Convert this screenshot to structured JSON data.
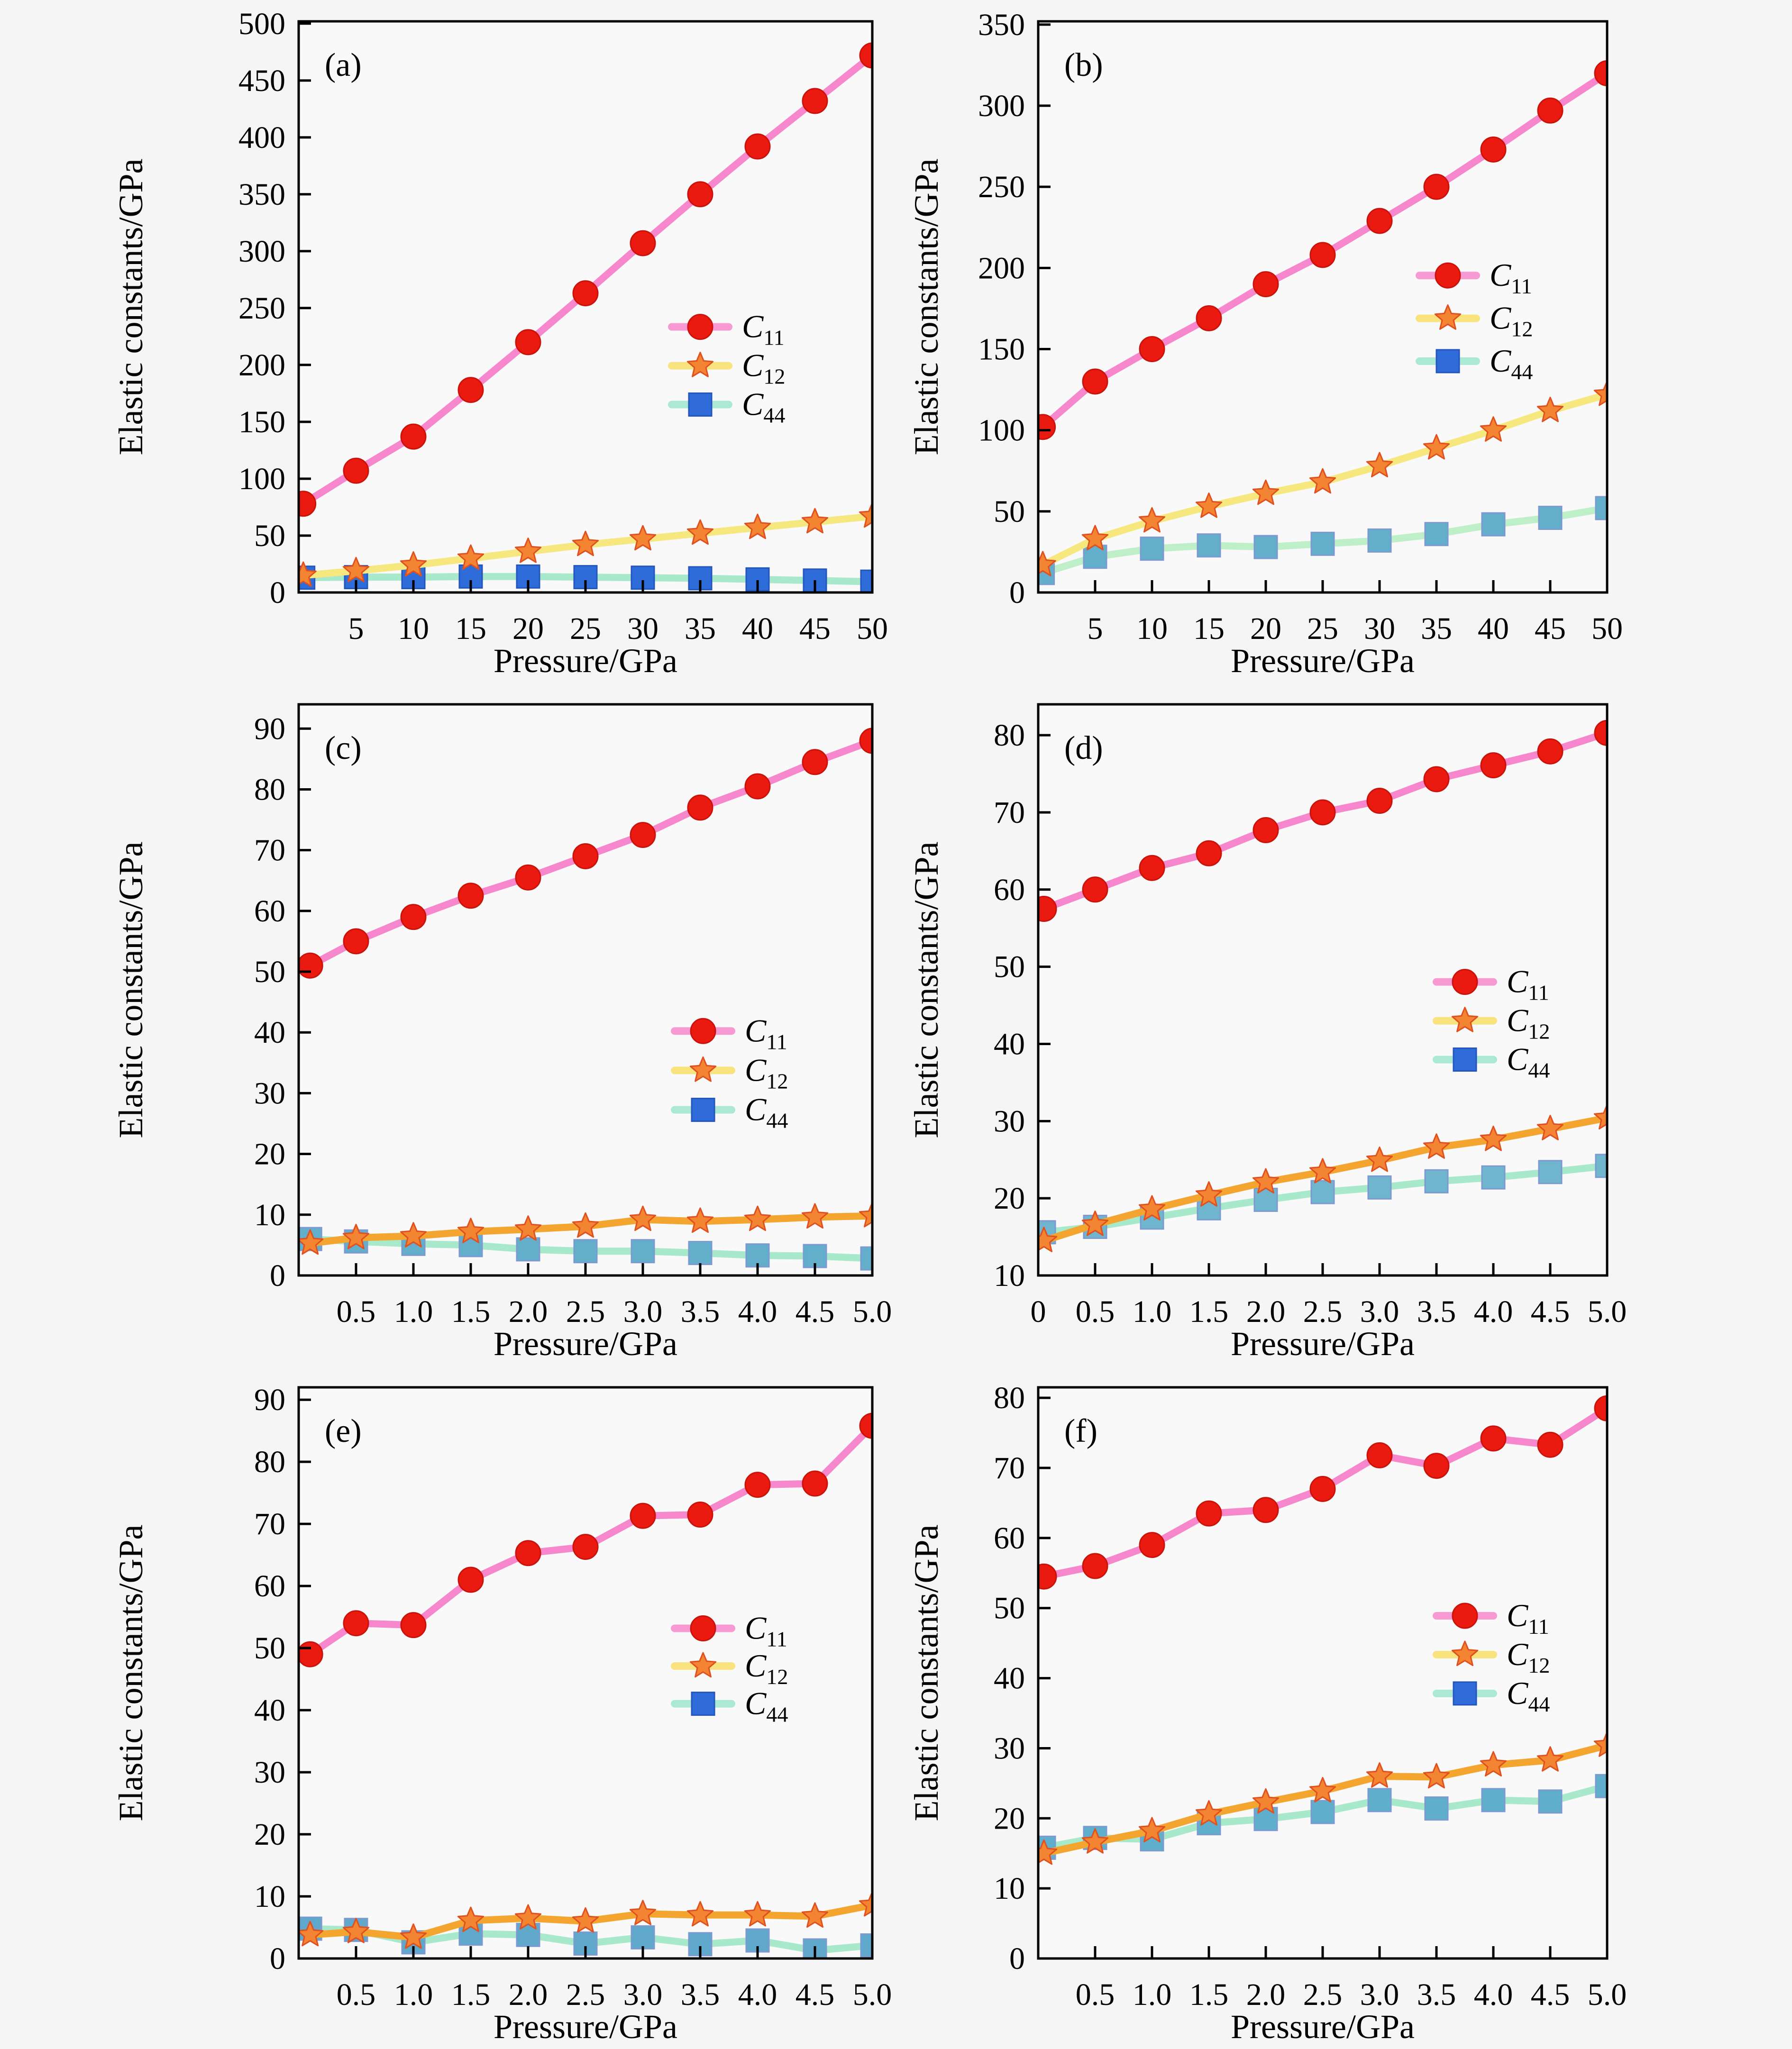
{
  "figure": {
    "background": "#F6F5F6",
    "plot_background": "#FAF9FA",
    "axis_color": "#000000",
    "text_color": "#000000",
    "xlabel": "Pressure/GPa",
    "ylabel": "Elastic constants/GPa"
  },
  "chart_data": [
    {
      "id": "a",
      "type": "line",
      "tag": "(a)",
      "column": "left",
      "xlabel": "Pressure/GPa",
      "ylabel": "Elastic constants/GPa",
      "xlim": [
        0,
        50
      ],
      "ylim": [
        0,
        502
      ],
      "grid": false,
      "xticks": [
        5,
        10,
        15,
        20,
        25,
        30,
        35,
        40,
        45,
        50
      ],
      "xtick_labels": [
        "5",
        "10",
        "15",
        "20",
        "25",
        "30",
        "35",
        "40",
        "45",
        "50"
      ],
      "yticks": [
        0,
        50,
        100,
        150,
        200,
        250,
        300,
        350,
        400,
        450,
        500
      ],
      "ytick_labels": [
        "0",
        "50",
        "100",
        "150",
        "200",
        "250",
        "300",
        "350",
        "400",
        "450",
        "500"
      ],
      "x": [
        0.4,
        5,
        10,
        15,
        20,
        25,
        30,
        35,
        40,
        45,
        50
      ],
      "series": [
        {
          "name": "C11",
          "label_main": "C",
          "label_sub": "11",
          "marker": "circle",
          "marker_fill": "#EB1A10",
          "marker_stroke": "#C9130B",
          "line_color": "#F787CD",
          "legend_line_color": "#F79AD3",
          "legend_marker_fill": "#EB1A10",
          "legend_marker_stroke": "#C9130B",
          "values": [
            78,
            107,
            137,
            178,
            220,
            263,
            307,
            350,
            392,
            432,
            472
          ]
        },
        {
          "name": "C12",
          "label_main": "C",
          "label_sub": "12",
          "marker": "star",
          "marker_fill": "#F28432",
          "marker_stroke": "#E0511F",
          "line_color": "#F6E77E",
          "legend_line_color": "#F8E37F",
          "legend_marker_fill": "#F28432",
          "legend_marker_stroke": "#E0511F",
          "values": [
            15,
            19,
            24,
            30,
            36,
            42,
            47,
            52,
            57,
            62,
            67
          ]
        },
        {
          "name": "C44",
          "label_main": "C",
          "label_sub": "44",
          "marker": "square",
          "marker_fill": "#2E6CD9",
          "marker_stroke": "#2456BE",
          "line_color": "#A9E9CB",
          "legend_line_color": "#ABE9D4",
          "legend_marker_fill": "#2F6BD9",
          "legend_marker_stroke": "#2456BE",
          "values": [
            13,
            13.5,
            13.5,
            14,
            14,
            13.5,
            13,
            12.5,
            11.5,
            10.5,
            9.5
          ]
        }
      ],
      "legend": {
        "fx": 0.7,
        "fy": 0.535,
        "dy": 0.068
      }
    },
    {
      "id": "b",
      "type": "line",
      "tag": "(b)",
      "column": "right",
      "xlabel": "Pressure/GPa",
      "ylabel": "Elastic constants/GPa",
      "xlim": [
        0,
        50
      ],
      "ylim": [
        0,
        352
      ],
      "grid": false,
      "xticks": [
        5,
        10,
        15,
        20,
        25,
        30,
        35,
        40,
        45,
        50
      ],
      "xtick_labels": [
        "5",
        "10",
        "15",
        "20",
        "25",
        "30",
        "35",
        "40",
        "45",
        "50"
      ],
      "yticks": [
        0,
        50,
        100,
        150,
        200,
        250,
        300,
        350
      ],
      "ytick_labels": [
        "0",
        "50",
        "100",
        "150",
        "200",
        "250",
        "300",
        "350"
      ],
      "x": [
        0.4,
        5,
        10,
        15,
        20,
        25,
        30,
        35,
        40,
        45,
        50
      ],
      "series": [
        {
          "name": "C11",
          "label_main": "C",
          "label_sub": "11",
          "marker": "circle",
          "marker_fill": "#EB1A10",
          "marker_stroke": "#C9130B",
          "line_color": "#F787CD",
          "legend_line_color": "#F79AD3",
          "legend_marker_fill": "#EB1A10",
          "legend_marker_stroke": "#C9130B",
          "values": [
            102,
            130,
            150,
            169,
            190,
            208,
            229,
            250,
            273,
            297,
            320
          ]
        },
        {
          "name": "C12",
          "label_main": "C",
          "label_sub": "12",
          "marker": "star",
          "marker_fill": "#F28432",
          "marker_stroke": "#E0511F",
          "line_color": "#F6E77E",
          "legend_line_color": "#F8E37F",
          "legend_marker_fill": "#F28432",
          "legend_marker_stroke": "#E0511F",
          "values": [
            17,
            33,
            44,
            53,
            61,
            68,
            78,
            89,
            100,
            112,
            122
          ]
        },
        {
          "name": "C44",
          "label_main": "C",
          "label_sub": "44",
          "marker": "square",
          "marker_fill": "#63AECB",
          "marker_stroke": "#7D9AD0",
          "line_color": "#BFEFC8",
          "legend_line_color": "#ABE9D4",
          "legend_marker_fill": "#2F6BD9",
          "legend_marker_stroke": "#2456BE",
          "values": [
            12,
            22,
            27,
            29,
            28,
            30,
            32,
            36,
            42,
            46,
            52
          ]
        }
      ],
      "legend": {
        "fx": 0.72,
        "fy": 0.445,
        "dy": 0.075
      }
    },
    {
      "id": "c",
      "type": "line",
      "tag": "(c)",
      "column": "left",
      "xlabel": "Pressure/GPa",
      "ylabel": "Elastic constants/GPa",
      "xlim": [
        0,
        5
      ],
      "ylim": [
        0,
        94
      ],
      "grid": false,
      "xticks": [
        0.5,
        1.0,
        1.5,
        2.0,
        2.5,
        3.0,
        3.5,
        4.0,
        4.5,
        5.0
      ],
      "xtick_labels": [
        "0.5",
        "1.0",
        "1.5",
        "2.0",
        "2.5",
        "3.0",
        "3.5",
        "4.0",
        "4.5",
        "5.0"
      ],
      "yticks": [
        0,
        10,
        20,
        30,
        40,
        50,
        60,
        70,
        80,
        90
      ],
      "ytick_labels": [
        "0",
        "10",
        "20",
        "30",
        "40",
        "50",
        "60",
        "70",
        "80",
        "90"
      ],
      "x": [
        0.1,
        0.5,
        1,
        1.5,
        2,
        2.5,
        3,
        3.5,
        4,
        4.5,
        5
      ],
      "series": [
        {
          "name": "C11",
          "label_main": "C",
          "label_sub": "11",
          "marker": "circle",
          "marker_fill": "#EB1A10",
          "marker_stroke": "#C9130B",
          "line_color": "#F787CD",
          "legend_line_color": "#F79AD3",
          "legend_marker_fill": "#EB1A10",
          "legend_marker_stroke": "#C9130B",
          "values": [
            51,
            55,
            59,
            62.5,
            65.5,
            69,
            72.5,
            77,
            80.5,
            84.5,
            88
          ]
        },
        {
          "name": "C12",
          "label_main": "C",
          "label_sub": "12",
          "marker": "star",
          "marker_fill": "#F28432",
          "marker_stroke": "#E0511F",
          "line_color": "#F4A52F",
          "legend_line_color": "#F8E37F",
          "legend_marker_fill": "#F28432",
          "legend_marker_stroke": "#E0511F",
          "values": [
            5.3,
            6.2,
            6.5,
            7.2,
            7.6,
            8.1,
            9.2,
            8.9,
            9.2,
            9.6,
            9.8
          ]
        },
        {
          "name": "C44",
          "label_main": "C",
          "label_sub": "44",
          "marker": "square",
          "marker_fill": "#63AECB",
          "marker_stroke": "#7D9AD0",
          "line_color": "#A9E9CB",
          "legend_line_color": "#ABE9D4",
          "legend_marker_fill": "#2F6BD9",
          "legend_marker_stroke": "#2456BE",
          "values": [
            6,
            5.6,
            5.2,
            5,
            4.3,
            4,
            4,
            3.7,
            3.3,
            3.2,
            2.8
          ]
        }
      ],
      "legend": {
        "fx": 0.705,
        "fy": 0.572,
        "dy": 0.069
      }
    },
    {
      "id": "d",
      "type": "line",
      "tag": "(d)",
      "column": "right",
      "xlabel": "Pressure/GPa",
      "ylabel": "Elastic constants/GPa",
      "xlim": [
        0,
        5
      ],
      "ylim": [
        10,
        84
      ],
      "grid": false,
      "xticks": [
        0,
        0.5,
        1.0,
        1.5,
        2.0,
        2.5,
        3.0,
        3.5,
        4.0,
        4.5,
        5.0
      ],
      "xtick_labels": [
        "0",
        "0.5",
        "1.0",
        "1.5",
        "2.0",
        "2.5",
        "3.0",
        "3.5",
        "4.0",
        "4.5",
        "5.0"
      ],
      "yticks": [
        10,
        20,
        30,
        40,
        50,
        60,
        70,
        80
      ],
      "ytick_labels": [
        "10",
        "20",
        "30",
        "40",
        "50",
        "60",
        "70",
        "80"
      ],
      "x": [
        0.05,
        0.5,
        1,
        1.5,
        2,
        2.5,
        3,
        3.5,
        4,
        4.5,
        5
      ],
      "series": [
        {
          "name": "C11",
          "label_main": "C",
          "label_sub": "11",
          "marker": "circle",
          "marker_fill": "#EB1A10",
          "marker_stroke": "#C9130B",
          "line_color": "#F787CD",
          "legend_line_color": "#F79AD3",
          "legend_marker_fill": "#EB1A10",
          "legend_marker_stroke": "#C9130B",
          "values": [
            57.5,
            60,
            62.8,
            64.7,
            67.7,
            70,
            71.5,
            74.3,
            76.1,
            77.9,
            80.3
          ]
        },
        {
          "name": "C12",
          "label_main": "C",
          "label_sub": "12",
          "marker": "star",
          "marker_fill": "#F28432",
          "marker_stroke": "#E0511F",
          "line_color": "#F4A52F",
          "legend_line_color": "#F8E37F",
          "legend_marker_fill": "#F28432",
          "legend_marker_stroke": "#E0511F",
          "values": [
            14.5,
            16.6,
            18.6,
            20.4,
            22.1,
            23.4,
            24.9,
            26.6,
            27.6,
            29,
            30.4
          ]
        },
        {
          "name": "C44",
          "label_main": "C",
          "label_sub": "44",
          "marker": "square",
          "marker_fill": "#6FB5CE",
          "marker_stroke": "#7D9AD0",
          "line_color": "#A9E9CB",
          "legend_line_color": "#ABE9D4",
          "legend_marker_fill": "#2F6BD9",
          "legend_marker_stroke": "#2456BE",
          "values": [
            15.6,
            16.3,
            17.5,
            18.7,
            19.8,
            20.8,
            21.4,
            22.2,
            22.7,
            23.4,
            24.2
          ]
        }
      ],
      "legend": {
        "fx": 0.75,
        "fy": 0.486,
        "dy": 0.068
      }
    },
    {
      "id": "e",
      "type": "line",
      "tag": "(e)",
      "column": "left",
      "xlabel": "Pressure/GPa",
      "ylabel": "Elastic constants/GPa",
      "xlim": [
        0,
        5
      ],
      "ylim": [
        0,
        92
      ],
      "grid": false,
      "xticks": [
        0.5,
        1.0,
        1.5,
        2.0,
        2.5,
        3.0,
        3.5,
        4.0,
        4.5,
        5.0
      ],
      "xtick_labels": [
        "0.5",
        "1.0",
        "1.5",
        "2.0",
        "2.5",
        "3.0",
        "3.5",
        "4.0",
        "4.5",
        "5.0"
      ],
      "yticks": [
        0,
        10,
        20,
        30,
        40,
        50,
        60,
        70,
        80,
        90
      ],
      "ytick_labels": [
        "0",
        "10",
        "20",
        "30",
        "40",
        "50",
        "60",
        "70",
        "80",
        "90"
      ],
      "x": [
        0.1,
        0.5,
        1,
        1.5,
        2,
        2.5,
        3,
        3.5,
        4,
        4.5,
        5
      ],
      "series": [
        {
          "name": "C11",
          "label_main": "C",
          "label_sub": "11",
          "marker": "circle",
          "marker_fill": "#EB1A10",
          "marker_stroke": "#C9130B",
          "line_color": "#F787CD",
          "legend_line_color": "#F79AD3",
          "legend_marker_fill": "#EB1A10",
          "legend_marker_stroke": "#C9130B",
          "values": [
            49,
            54,
            53.7,
            61,
            65.3,
            66.3,
            71.3,
            71.5,
            76.3,
            76.5,
            85.8
          ]
        },
        {
          "name": "C12",
          "label_main": "C",
          "label_sub": "12",
          "marker": "star",
          "marker_fill": "#F28432",
          "marker_stroke": "#E0511F",
          "line_color": "#F4A52F",
          "legend_line_color": "#F8E37F",
          "legend_marker_fill": "#F28432",
          "legend_marker_stroke": "#E0511F",
          "values": [
            3.8,
            4.3,
            3.4,
            6.1,
            6.5,
            6,
            7.2,
            7,
            7,
            6.8,
            8.6
          ]
        },
        {
          "name": "C44",
          "label_main": "C",
          "label_sub": "44",
          "marker": "square",
          "marker_fill": "#5FA8CB",
          "marker_stroke": "#7D9AD0",
          "line_color": "#A9E9CB",
          "legend_line_color": "#ABE9D4",
          "legend_marker_fill": "#2F6BD9",
          "legend_marker_stroke": "#2456BE",
          "values": [
            4.8,
            4.6,
            2.6,
            4,
            3.8,
            2.4,
            3.4,
            2.3,
            2.9,
            1.3,
            2.1
          ]
        }
      ],
      "legend": {
        "fx": 0.705,
        "fy": 0.422,
        "dy": 0.066
      }
    },
    {
      "id": "f",
      "type": "line",
      "tag": "(f)",
      "column": "right",
      "xlabel": "Pressure/GPa",
      "ylabel": "Elastic constants/GPa",
      "xlim": [
        0,
        5
      ],
      "ylim": [
        0,
        81.5
      ],
      "grid": false,
      "xticks": [
        0.5,
        1.0,
        1.5,
        2.0,
        2.5,
        3.0,
        3.5,
        4.0,
        4.5,
        5.0
      ],
      "xtick_labels": [
        "0.5",
        "1.0",
        "1.5",
        "2.0",
        "2.5",
        "3.0",
        "3.5",
        "4.0",
        "4.5",
        "5.0"
      ],
      "yticks": [
        0,
        10,
        20,
        30,
        40,
        50,
        60,
        70,
        80
      ],
      "ytick_labels": [
        "0",
        "10",
        "20",
        "30",
        "40",
        "50",
        "60",
        "70",
        "80"
      ],
      "x": [
        0.05,
        0.5,
        1,
        1.5,
        2,
        2.5,
        3,
        3.5,
        4,
        4.5,
        5
      ],
      "series": [
        {
          "name": "C11",
          "label_main": "C",
          "label_sub": "11",
          "marker": "circle",
          "marker_fill": "#EB1A10",
          "marker_stroke": "#C9130B",
          "line_color": "#F787CD",
          "legend_line_color": "#F79AD3",
          "legend_marker_fill": "#EB1A10",
          "legend_marker_stroke": "#C9130B",
          "values": [
            54.5,
            56,
            59,
            63.5,
            64,
            67,
            71.8,
            70.3,
            74.2,
            73.3,
            78.5
          ]
        },
        {
          "name": "C12",
          "label_main": "C",
          "label_sub": "12",
          "marker": "star",
          "marker_fill": "#F28432",
          "marker_stroke": "#E0511F",
          "line_color": "#F4A52F",
          "legend_line_color": "#F8E37F",
          "legend_marker_fill": "#F28432",
          "legend_marker_stroke": "#E0511F",
          "values": [
            15,
            16.6,
            18.2,
            20.6,
            22.3,
            23.9,
            26,
            25.9,
            27.6,
            28.3,
            30.4
          ]
        },
        {
          "name": "C44",
          "label_main": "C",
          "label_sub": "44",
          "marker": "square",
          "marker_fill": "#5FAECB",
          "marker_stroke": "#7D9AD0",
          "line_color": "#A9E9CB",
          "legend_line_color": "#ABE9D4",
          "legend_marker_fill": "#2F6BD9",
          "legend_marker_stroke": "#2456BE",
          "values": [
            15.8,
            17.2,
            17,
            19.3,
            19.9,
            20.9,
            22.6,
            21.4,
            22.6,
            22.4,
            24.6
          ]
        }
      ],
      "legend": {
        "fx": 0.75,
        "fy": 0.4,
        "dy": 0.068
      }
    }
  ]
}
